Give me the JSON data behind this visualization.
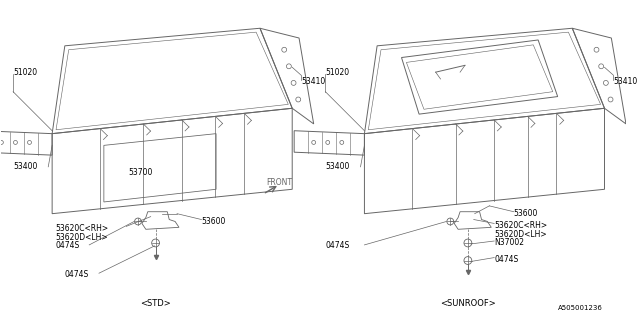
{
  "background_color": "#ffffff",
  "diagram_id": "A505001236",
  "std_label": "<STD>",
  "sunroof_label": "<SUNROOF>",
  "line_color": "#666666",
  "text_color": "#000000",
  "font_size": 5.5,
  "lw": 0.7
}
